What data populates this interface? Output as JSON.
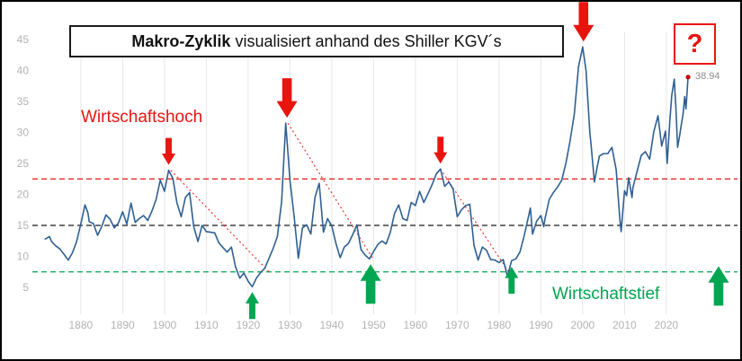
{
  "title": {
    "bold": "Makro-Zyklik",
    "regular": " visualisiert anhand des Shiller KGV´s"
  },
  "labels": {
    "economic_high": "Wirtschaftshoch",
    "economic_low": "Wirtschaftstief",
    "question_mark": "?",
    "last_value": "38.94"
  },
  "colors": {
    "line": "#2f6092",
    "high": "#e8150f",
    "low": "#00a651",
    "mid": "#1a1a1a",
    "grid": "#e7e7e7",
    "axis_text": "#b3b3b3",
    "last_dot": "#c00000",
    "last_value_text": "#8c8c8c"
  },
  "chart_data": {
    "type": "line",
    "series_name": "Shiller KGV (CAPE)",
    "xlim": [
      1871,
      2027
    ],
    "ylim": [
      3,
      47
    ],
    "x_ticks": [
      1880,
      1890,
      1900,
      1910,
      1920,
      1930,
      1940,
      1950,
      1960,
      1970,
      1980,
      1990,
      2000,
      2010,
      2020
    ],
    "y_ticks": [
      5,
      10,
      15,
      20,
      25,
      30,
      35,
      40,
      45
    ],
    "grid": "vertical-only",
    "legend": "none",
    "reference_lines": [
      {
        "value": 22.5,
        "color": "#e8150f",
        "style": "dashed"
      },
      {
        "value": 15,
        "color": "#1a1a1a",
        "style": "dashed"
      },
      {
        "value": 7.5,
        "color": "#00a651",
        "style": "dashed"
      }
    ],
    "last_value": 38.94,
    "points": [
      [
        1871.5,
        12.8
      ],
      [
        1872.5,
        13.2
      ],
      [
        1873,
        12.4
      ],
      [
        1874,
        11.7
      ],
      [
        1875,
        11.2
      ],
      [
        1876,
        10.3
      ],
      [
        1877,
        9.4
      ],
      [
        1878,
        10.6
      ],
      [
        1879,
        12.4
      ],
      [
        1880,
        15.2
      ],
      [
        1881,
        18.3
      ],
      [
        1881.7,
        17.0
      ],
      [
        1882,
        15.6
      ],
      [
        1883,
        15.3
      ],
      [
        1884,
        13.4
      ],
      [
        1885,
        14.8
      ],
      [
        1886,
        16.7
      ],
      [
        1887,
        16.0
      ],
      [
        1888,
        14.6
      ],
      [
        1889,
        15.4
      ],
      [
        1890,
        17.2
      ],
      [
        1891,
        15.2
      ],
      [
        1892,
        18.6
      ],
      [
        1893,
        15.5
      ],
      [
        1894,
        16.1
      ],
      [
        1895,
        16.6
      ],
      [
        1896,
        15.8
      ],
      [
        1897,
        17.3
      ],
      [
        1898,
        19.2
      ],
      [
        1899,
        22.3
      ],
      [
        1900,
        20.5
      ],
      [
        1901,
        23.9
      ],
      [
        1902,
        22.6
      ],
      [
        1903,
        18.6
      ],
      [
        1904,
        16.4
      ],
      [
        1905,
        19.5
      ],
      [
        1906,
        20.3
      ],
      [
        1907,
        14.8
      ],
      [
        1908,
        12.4
      ],
      [
        1909,
        15.0
      ],
      [
        1910,
        14.0
      ],
      [
        1911,
        13.9
      ],
      [
        1912,
        13.8
      ],
      [
        1913,
        12.2
      ],
      [
        1914,
        11.4
      ],
      [
        1915,
        10.7
      ],
      [
        1916,
        11.5
      ],
      [
        1917,
        8.3
      ],
      [
        1918,
        6.5
      ],
      [
        1919,
        7.3
      ],
      [
        1920,
        6.0
      ],
      [
        1921,
        5.1
      ],
      [
        1922,
        6.5
      ],
      [
        1923,
        7.4
      ],
      [
        1924,
        8.1
      ],
      [
        1925,
        9.7
      ],
      [
        1926,
        11.3
      ],
      [
        1927,
        13.2
      ],
      [
        1928,
        18.8
      ],
      [
        1929,
        31.5
      ],
      [
        1930,
        22.3
      ],
      [
        1931,
        16.5
      ],
      [
        1932,
        9.7
      ],
      [
        1933,
        14.6
      ],
      [
        1934,
        15.1
      ],
      [
        1935,
        13.6
      ],
      [
        1936,
        19.6
      ],
      [
        1937,
        21.8
      ],
      [
        1938,
        13.9
      ],
      [
        1939,
        16.1
      ],
      [
        1940,
        14.9
      ],
      [
        1941,
        12.1
      ],
      [
        1942,
        9.8
      ],
      [
        1943,
        11.5
      ],
      [
        1944,
        12.1
      ],
      [
        1945,
        13.5
      ],
      [
        1946,
        15.1
      ],
      [
        1947,
        11.1
      ],
      [
        1948,
        10.2
      ],
      [
        1949,
        9.6
      ],
      [
        1950,
        10.8
      ],
      [
        1951,
        11.9
      ],
      [
        1952,
        12.5
      ],
      [
        1953,
        12.0
      ],
      [
        1954,
        13.9
      ],
      [
        1955,
        16.9
      ],
      [
        1956,
        18.3
      ],
      [
        1957,
        16.1
      ],
      [
        1958,
        15.8
      ],
      [
        1959,
        18.7
      ],
      [
        1960,
        18.2
      ],
      [
        1961,
        20.5
      ],
      [
        1962,
        18.7
      ],
      [
        1963,
        20.1
      ],
      [
        1964,
        21.6
      ],
      [
        1965,
        23.3
      ],
      [
        1966,
        24.1
      ],
      [
        1967,
        21.3
      ],
      [
        1968,
        22.0
      ],
      [
        1969,
        20.9
      ],
      [
        1970,
        16.4
      ],
      [
        1971,
        17.5
      ],
      [
        1972,
        18.2
      ],
      [
        1973,
        18.4
      ],
      [
        1974,
        11.8
      ],
      [
        1975,
        9.4
      ],
      [
        1976,
        11.5
      ],
      [
        1977,
        11.0
      ],
      [
        1978,
        9.5
      ],
      [
        1979,
        9.4
      ],
      [
        1980,
        9.0
      ],
      [
        1981,
        9.5
      ],
      [
        1982,
        6.8
      ],
      [
        1983,
        9.3
      ],
      [
        1984,
        9.6
      ],
      [
        1985,
        10.7
      ],
      [
        1986,
        13.3
      ],
      [
        1987.5,
        17.8
      ],
      [
        1988,
        13.6
      ],
      [
        1989,
        15.7
      ],
      [
        1990,
        16.6
      ],
      [
        1990.7,
        14.8
      ],
      [
        1991,
        16.1
      ],
      [
        1992,
        19.2
      ],
      [
        1993,
        20.3
      ],
      [
        1994,
        21.2
      ],
      [
        1995,
        22.3
      ],
      [
        1996,
        25.1
      ],
      [
        1997,
        28.7
      ],
      [
        1998,
        33.0
      ],
      [
        1999,
        40.6
      ],
      [
        2000,
        43.8
      ],
      [
        2000.8,
        40.0
      ],
      [
        2001.7,
        30.0
      ],
      [
        2002,
        28.0
      ],
      [
        2002.8,
        22.0
      ],
      [
        2003.5,
        24.5
      ],
      [
        2004,
        26.2
      ],
      [
        2005,
        26.6
      ],
      [
        2006,
        26.6
      ],
      [
        2007,
        27.6
      ],
      [
        2008,
        24.0
      ],
      [
        2008.9,
        16.0
      ],
      [
        2009.2,
        14.0
      ],
      [
        2010,
        20.6
      ],
      [
        2010.5,
        19.8
      ],
      [
        2011,
        22.7
      ],
      [
        2011.8,
        19.5
      ],
      [
        2012,
        21.1
      ],
      [
        2013,
        23.7
      ],
      [
        2014,
        26.3
      ],
      [
        2015,
        26.9
      ],
      [
        2016,
        25.7
      ],
      [
        2017,
        30.1
      ],
      [
        2018,
        32.7
      ],
      [
        2018.9,
        27.8
      ],
      [
        2019.8,
        30.2
      ],
      [
        2020.2,
        25.0
      ],
      [
        2020.8,
        31.5
      ],
      [
        2021.3,
        36.0
      ],
      [
        2021.9,
        38.6
      ],
      [
        2022.3,
        34.0
      ],
      [
        2022.7,
        27.6
      ],
      [
        2023.2,
        29.5
      ],
      [
        2023.6,
        31.3
      ],
      [
        2024.0,
        33.0
      ],
      [
        2024.4,
        35.8
      ],
      [
        2024.7,
        33.8
      ],
      [
        2025.0,
        36.8
      ],
      [
        2025.2,
        38.94
      ]
    ]
  },
  "annotations": {
    "down_arrows": [
      {
        "year": 1901,
        "value": 23.9,
        "size": "small"
      },
      {
        "year": 1929.3,
        "value": 31.5,
        "size": "large"
      },
      {
        "year": 1966,
        "value": 24.1,
        "size": "small"
      },
      {
        "year": 2000.2,
        "value": 43.8,
        "size": "large"
      }
    ],
    "up_arrows": [
      {
        "year": 1921,
        "value": 5.1,
        "size": "small"
      },
      {
        "year": 1949.3,
        "value": 9.6,
        "size": "large"
      },
      {
        "year": 1983,
        "value": 9.2,
        "size": "small"
      },
      {
        "year": 2032.5,
        "value": 9.3,
        "size": "large"
      }
    ],
    "trendlines": [
      {
        "from": {
          "year": 1901.5,
          "value": 23.9
        },
        "to": {
          "year": 1925,
          "value": 7.5
        }
      },
      {
        "from": {
          "year": 1929.5,
          "value": 31.5
        },
        "to": {
          "year": 1950,
          "value": 9.5
        }
      },
      {
        "from": {
          "year": 1966,
          "value": 24.1
        },
        "to": {
          "year": 1983,
          "value": 6.8
        }
      }
    ]
  }
}
